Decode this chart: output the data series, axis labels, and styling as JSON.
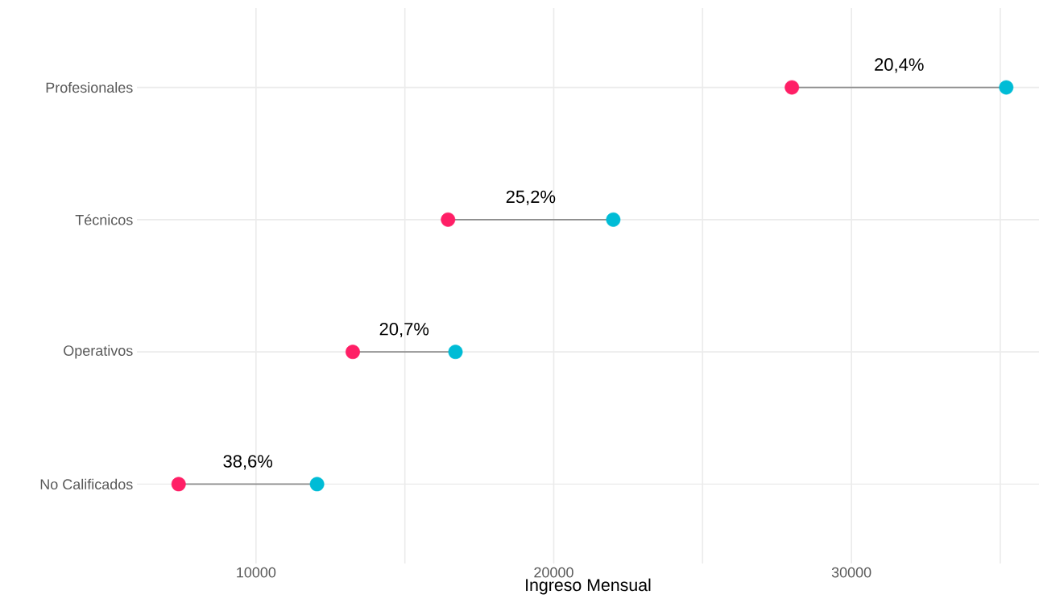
{
  "chart_data": {
    "type": "scatter",
    "orientation": "horizontal",
    "xlabel": "Ingreso Mensual",
    "categories": [
      "Profesionales",
      "Técnicos",
      "Operativos",
      "No Calificados"
    ],
    "series": [
      {
        "color": "#ff1f66",
        "values": [
          28000,
          16450,
          13250,
          7400
        ]
      },
      {
        "color": "#00bcd6",
        "values": [
          35200,
          22000,
          16700,
          12050
        ]
      }
    ],
    "xlim": [
      6000,
      36300
    ],
    "xticks": [
      10000,
      {
        "value": 15000,
        "label": null
      },
      20000,
      {
        "value": 25000,
        "label": null
      },
      30000,
      {
        "value": 35000,
        "label": null
      }
    ],
    "annotations": [
      "20,4%",
      "25,2%",
      "20,7%",
      "38,6%"
    ],
    "grid": true
  }
}
